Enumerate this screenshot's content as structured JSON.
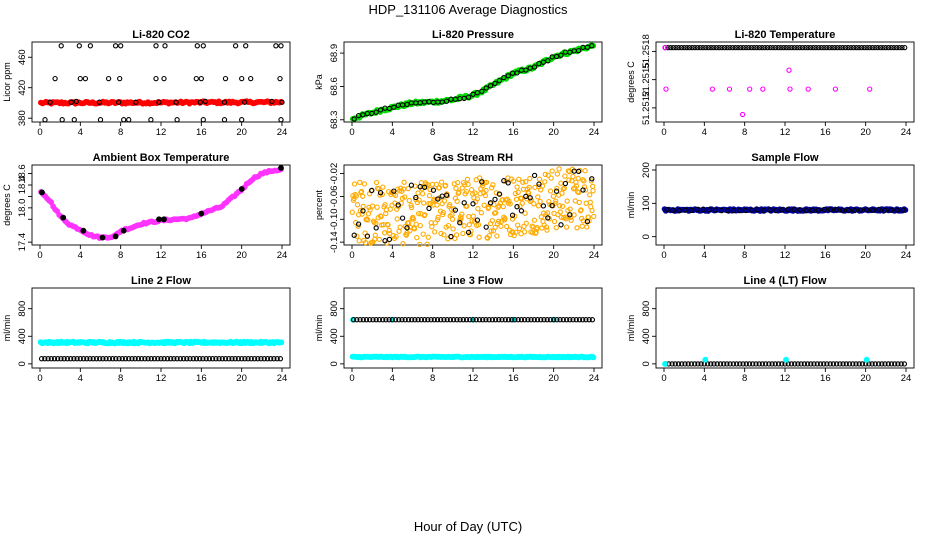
{
  "figure": {
    "title": "HDP_131106  Average Diagnostics",
    "xlabel": "Hour of Day (UTC)"
  },
  "chart_data": [
    {
      "type": "scatter",
      "title": "Li-820 CO2",
      "ylabel": "Licor ppm",
      "xlim": [
        0,
        24
      ],
      "ylim": [
        375,
        480
      ],
      "xticks": [
        0,
        4,
        8,
        12,
        16,
        20,
        24
      ],
      "yticks": [
        380,
        420,
        460
      ],
      "series": [
        {
          "color": "#ff0000",
          "marker": "filled",
          "count": 140,
          "values": [
            {
              "x": 0,
              "y": 400
            },
            {
              "x": 24,
              "y": 401
            }
          ],
          "jitter": 1.5
        },
        {
          "color": "#000000",
          "marker": "open",
          "points": [
            {
              "x": 0.5,
              "y": 378
            },
            {
              "x": 2.2,
              "y": 378
            },
            {
              "x": 3.4,
              "y": 378
            },
            {
              "x": 6.0,
              "y": 378
            },
            {
              "x": 8.3,
              "y": 378
            },
            {
              "x": 8.8,
              "y": 378
            },
            {
              "x": 11.0,
              "y": 378
            },
            {
              "x": 13.6,
              "y": 378
            },
            {
              "x": 16.2,
              "y": 378
            },
            {
              "x": 18.3,
              "y": 378
            },
            {
              "x": 20.0,
              "y": 378
            },
            {
              "x": 23.9,
              "y": 378
            },
            {
              "x": 1.0,
              "y": 401
            },
            {
              "x": 3.1,
              "y": 401
            },
            {
              "x": 3.6,
              "y": 402
            },
            {
              "x": 5.9,
              "y": 401
            },
            {
              "x": 7.8,
              "y": 401
            },
            {
              "x": 9.5,
              "y": 401
            },
            {
              "x": 11.8,
              "y": 401
            },
            {
              "x": 13.5,
              "y": 401
            },
            {
              "x": 15.9,
              "y": 401
            },
            {
              "x": 16.4,
              "y": 402
            },
            {
              "x": 18.3,
              "y": 401
            },
            {
              "x": 20.3,
              "y": 401
            },
            {
              "x": 23.0,
              "y": 402
            },
            {
              "x": 24.0,
              "y": 401
            },
            {
              "x": 1.5,
              "y": 432
            },
            {
              "x": 4.0,
              "y": 432
            },
            {
              "x": 4.5,
              "y": 432
            },
            {
              "x": 6.8,
              "y": 432
            },
            {
              "x": 7.9,
              "y": 432
            },
            {
              "x": 11.5,
              "y": 432
            },
            {
              "x": 12.3,
              "y": 432
            },
            {
              "x": 15.5,
              "y": 432
            },
            {
              "x": 16.0,
              "y": 432
            },
            {
              "x": 18.4,
              "y": 432
            },
            {
              "x": 20.0,
              "y": 432
            },
            {
              "x": 20.9,
              "y": 432
            },
            {
              "x": 23.8,
              "y": 432
            },
            {
              "x": 2.1,
              "y": 475
            },
            {
              "x": 3.9,
              "y": 475
            },
            {
              "x": 5.0,
              "y": 475
            },
            {
              "x": 7.5,
              "y": 475
            },
            {
              "x": 8.0,
              "y": 475
            },
            {
              "x": 11.5,
              "y": 475
            },
            {
              "x": 12.4,
              "y": 475
            },
            {
              "x": 15.6,
              "y": 475
            },
            {
              "x": 16.2,
              "y": 475
            },
            {
              "x": 19.4,
              "y": 475
            },
            {
              "x": 20.4,
              "y": 475
            },
            {
              "x": 23.4,
              "y": 475
            },
            {
              "x": 23.9,
              "y": 475
            }
          ]
        }
      ]
    },
    {
      "type": "scatter",
      "title": "Li-820 Pressure",
      "ylabel": "kPa",
      "xlim": [
        0,
        24
      ],
      "ylim": [
        68.28,
        69.0
      ],
      "xticks": [
        0,
        4,
        8,
        12,
        16,
        20,
        24
      ],
      "yticks": [
        68.3,
        68.6,
        68.9
      ],
      "yticklabels": [
        "68.3",
        "68.6",
        "68.9"
      ],
      "series": [
        {
          "color": "#00dd00",
          "marker": "filled",
          "trend": [
            [
              0,
              68.31
            ],
            [
              3,
              68.39
            ],
            [
              6,
              68.45
            ],
            [
              8,
              68.46
            ],
            [
              10,
              68.48
            ],
            [
              12,
              68.52
            ],
            [
              13,
              68.56
            ],
            [
              16,
              68.72
            ],
            [
              18,
              68.77
            ],
            [
              20,
              68.87
            ],
            [
              22,
              68.92
            ],
            [
              24,
              68.97
            ]
          ],
          "count": 150,
          "jitter": 0.015
        },
        {
          "color": "#000000",
          "marker": "open",
          "trend": [
            [
              0,
              68.31
            ],
            [
              3,
              68.39
            ],
            [
              6,
              68.45
            ],
            [
              8,
              68.46
            ],
            [
              10,
              68.48
            ],
            [
              12,
              68.52
            ],
            [
              13,
              68.56
            ],
            [
              16,
              68.72
            ],
            [
              18,
              68.77
            ],
            [
              20,
              68.87
            ],
            [
              22,
              68.92
            ],
            [
              24,
              68.97
            ]
          ],
          "count": 55,
          "jitter": 0.01
        }
      ]
    },
    {
      "type": "scatter",
      "title": "Li-820 Temperature",
      "ylabel": "degrees C",
      "xlim": [
        0,
        24
      ],
      "ylim": [
        51.25105,
        51.2519
      ],
      "xticks": [
        0,
        4,
        8,
        12,
        16,
        20,
        24
      ],
      "yticks": [
        51.2512,
        51.2515,
        51.2518
      ],
      "yticklabels": [
        "51.2512",
        "51.2515",
        "51.2518"
      ],
      "series": [
        {
          "color": "#000000",
          "marker": "open",
          "line_y": 51.25184,
          "count": 90
        },
        {
          "color": "#ff00ff",
          "marker": "open",
          "points": [
            {
              "x": 0.1,
              "y": 51.25184
            },
            {
              "x": 0.2,
              "y": 51.2514
            },
            {
              "x": 4.8,
              "y": 51.2514
            },
            {
              "x": 6.5,
              "y": 51.2514
            },
            {
              "x": 8.5,
              "y": 51.2514
            },
            {
              "x": 9.8,
              "y": 51.2514
            },
            {
              "x": 7.8,
              "y": 51.25113
            },
            {
              "x": 12.4,
              "y": 51.2516
            },
            {
              "x": 12.5,
              "y": 51.2514
            },
            {
              "x": 14.3,
              "y": 51.2514
            },
            {
              "x": 17.0,
              "y": 51.2514
            },
            {
              "x": 20.4,
              "y": 51.2514
            }
          ]
        }
      ]
    },
    {
      "type": "scatter",
      "title": "Ambient Box Temperature",
      "ylabel": "degrees C",
      "xlim": [
        0,
        24
      ],
      "ylim": [
        17.35,
        18.75
      ],
      "xticks": [
        0,
        4,
        8,
        12,
        16,
        20,
        24
      ],
      "yticks": [
        17.4,
        17.8,
        18.0,
        18.2,
        18.4,
        18.6
      ],
      "yticklabels": [
        "17.4",
        "",
        "18.0",
        "",
        "18.4",
        "18.6"
      ],
      "series": [
        {
          "color": "#ff33ff",
          "marker": "filled",
          "trend": [
            [
              0,
              18.28
            ],
            [
              1,
              18.12
            ],
            [
              2,
              17.85
            ],
            [
              3,
              17.7
            ],
            [
              4,
              17.62
            ],
            [
              5,
              17.52
            ],
            [
              6,
              17.48
            ],
            [
              7.4,
              17.5
            ],
            [
              8,
              17.6
            ],
            [
              9,
              17.65
            ],
            [
              10,
              17.72
            ],
            [
              12,
              17.78
            ],
            [
              15,
              17.82
            ],
            [
              16,
              17.9
            ],
            [
              18,
              18.02
            ],
            [
              20,
              18.32
            ],
            [
              21,
              18.5
            ],
            [
              22,
              18.6
            ],
            [
              23,
              18.65
            ],
            [
              24,
              18.67
            ]
          ],
          "count": 120,
          "jitter": 0.015
        },
        {
          "color": "#000000",
          "marker": "filled",
          "points": [
            {
              "x": 0.2,
              "y": 18.27
            },
            {
              "x": 2.3,
              "y": 17.83
            },
            {
              "x": 4.3,
              "y": 17.6
            },
            {
              "x": 6.2,
              "y": 17.48
            },
            {
              "x": 7.5,
              "y": 17.5
            },
            {
              "x": 8.3,
              "y": 17.6
            },
            {
              "x": 11.8,
              "y": 17.8
            },
            {
              "x": 12.3,
              "y": 17.8
            },
            {
              "x": 16.0,
              "y": 17.9
            },
            {
              "x": 20.0,
              "y": 18.33
            },
            {
              "x": 23.9,
              "y": 18.7
            }
          ]
        }
      ]
    },
    {
      "type": "scatter",
      "title": "Gas Stream RH",
      "ylabel": "percent",
      "xlim": [
        0,
        24
      ],
      "ylim": [
        -0.145,
        -0.005
      ],
      "xticks": [
        0,
        4,
        8,
        12,
        16,
        20,
        24
      ],
      "yticks": [
        -0.14,
        -0.1,
        -0.06,
        -0.02
      ],
      "yticklabels": [
        "-0.14",
        "-0.10",
        "-0.06",
        "-0.02"
      ],
      "series": [
        {
          "color": "#ffaa00",
          "marker": "open",
          "trend": [
            [
              0,
              -0.085
            ],
            [
              4,
              -0.09
            ],
            [
              8,
              -0.09
            ],
            [
              12,
              -0.08
            ],
            [
              16,
              -0.075
            ],
            [
              20,
              -0.065
            ],
            [
              24,
              -0.06
            ]
          ],
          "count": 420,
          "jitter": 0.055
        },
        {
          "color": "#000000",
          "marker": "open",
          "trend": [
            [
              0,
              -0.085
            ],
            [
              4,
              -0.09
            ],
            [
              8,
              -0.09
            ],
            [
              12,
              -0.08
            ],
            [
              16,
              -0.075
            ],
            [
              20,
              -0.065
            ],
            [
              24,
              -0.06
            ]
          ],
          "count": 55,
          "jitter": 0.05
        }
      ]
    },
    {
      "type": "scatter",
      "title": "Sample Flow",
      "ylabel": "ml/min",
      "xlim": [
        0,
        24
      ],
      "ylim": [
        -25,
        215
      ],
      "xticks": [
        0,
        4,
        8,
        12,
        16,
        20,
        24
      ],
      "yticks": [
        0,
        100,
        200
      ],
      "series": [
        {
          "color": "#000099",
          "marker": "filled",
          "line_y": 80,
          "count": 200,
          "jitter": 3
        },
        {
          "color": "#000000",
          "marker": "open",
          "line_y": 80,
          "count": 40,
          "jitter": 2
        }
      ]
    },
    {
      "type": "scatter",
      "title": "Line 2 Flow",
      "ylabel": "ml/min",
      "xlim": [
        0,
        24
      ],
      "ylim": [
        -60,
        1100
      ],
      "xticks": [
        0,
        4,
        8,
        12,
        16,
        20,
        24
      ],
      "yticks": [
        0,
        400,
        800
      ],
      "series": [
        {
          "color": "#00ffff",
          "marker": "filled",
          "line_y": 310,
          "count": 200,
          "jitter": 12
        },
        {
          "color": "#000000",
          "marker": "open",
          "line_y": 75,
          "count": 75,
          "jitter": 0
        }
      ]
    },
    {
      "type": "scatter",
      "title": "Line 3 Flow",
      "ylabel": "ml/min",
      "xlim": [
        0,
        24
      ],
      "ylim": [
        -60,
        1100
      ],
      "xticks": [
        0,
        4,
        8,
        12,
        16,
        20,
        24
      ],
      "yticks": [
        0,
        400,
        800
      ],
      "series": [
        {
          "color": "#00ffff",
          "marker": "filled",
          "line_y": 100,
          "count": 200,
          "jitter": 6
        },
        {
          "color": "#00ffff",
          "marker": "filled",
          "points": [
            {
              "x": 0.1,
              "y": 640
            },
            {
              "x": 4.0,
              "y": 640
            },
            {
              "x": 12.0,
              "y": 640
            },
            {
              "x": 16.0,
              "y": 640
            },
            {
              "x": 20.0,
              "y": 640
            }
          ]
        },
        {
          "color": "#000000",
          "marker": "open",
          "line_y": 640,
          "count": 75,
          "jitter": 0
        }
      ]
    },
    {
      "type": "scatter",
      "title": "Line 4 (LT) Flow",
      "ylabel": "ml/min",
      "xlim": [
        0,
        24
      ],
      "ylim": [
        -60,
        1100
      ],
      "xticks": [
        0,
        4,
        8,
        12,
        16,
        20,
        24
      ],
      "yticks": [
        0,
        400,
        800
      ],
      "series": [
        {
          "color": "#000000",
          "marker": "open",
          "line_y": 0,
          "count": 75,
          "jitter": 0
        },
        {
          "color": "#00ffff",
          "marker": "filled",
          "points": [
            {
              "x": 0.1,
              "y": 0
            },
            {
              "x": 4.1,
              "y": 60
            },
            {
              "x": 12.1,
              "y": 60
            },
            {
              "x": 20.1,
              "y": 60
            }
          ]
        }
      ]
    }
  ]
}
